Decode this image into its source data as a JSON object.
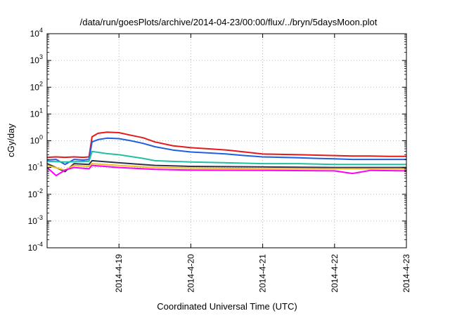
{
  "chart_data": {
    "type": "line",
    "title": "/data/run/goesPlots/archive/2014-04-23/00:00/flux/../bryn/5daysMoon.plot",
    "xlabel": "Coordinated Universal Time (UTC)",
    "ylabel": "cGy/day",
    "x_unit": "days (2014-04-18 00:00 to 2014-04-23 00:00 UTC)",
    "xlim": [
      "2014-04-18 00:00",
      "2014-04-23 00:00"
    ],
    "x_ticks": [
      "2014-4-19",
      "2014-4-20",
      "2014-4-21",
      "2014-4-22",
      "2014-4-23"
    ],
    "y_scale": "log",
    "ylim": [
      0.0001,
      10000
    ],
    "y_ticks": [
      {
        "base": "10",
        "exp": "-4"
      },
      {
        "base": "10",
        "exp": "-3"
      },
      {
        "base": "10",
        "exp": "-2"
      },
      {
        "base": "10",
        "exp": "-1"
      },
      {
        "base": "10",
        "exp": "0"
      },
      {
        "base": "10",
        "exp": "1"
      },
      {
        "base": "10",
        "exp": "2"
      },
      {
        "base": "10",
        "exp": "3"
      },
      {
        "base": "10",
        "exp": "4"
      }
    ],
    "grid": true,
    "legend": "none",
    "series": [
      {
        "color": "#e31a1c",
        "x": [
          "2014-04-18 00:00",
          "2014-04-18 03:00",
          "2014-04-18 06:00",
          "2014-04-18 09:00",
          "2014-04-18 12:00",
          "2014-04-18 14:00",
          "2014-04-18 15:00",
          "2014-04-18 17:00",
          "2014-04-18 20:00",
          "2014-04-19 00:00",
          "2014-04-19 04:00",
          "2014-04-19 08:00",
          "2014-04-19 12:00",
          "2014-04-19 18:00",
          "2014-04-20 00:00",
          "2014-04-20 06:00",
          "2014-04-20 12:00",
          "2014-04-20 18:00",
          "2014-04-21 00:00",
          "2014-04-21 06:00",
          "2014-04-21 12:00",
          "2014-04-21 18:00",
          "2014-04-22 00:00",
          "2014-04-22 06:00",
          "2014-04-22 12:00",
          "2014-04-22 18:00",
          "2014-04-23 00:00"
        ],
        "y": [
          0.24,
          0.25,
          0.24,
          0.25,
          0.24,
          0.25,
          1.4,
          1.9,
          2.1,
          2.0,
          1.6,
          1.3,
          0.9,
          0.65,
          0.55,
          0.5,
          0.45,
          0.38,
          0.32,
          0.31,
          0.3,
          0.29,
          0.28,
          0.27,
          0.27,
          0.26,
          0.26
        ]
      },
      {
        "color": "#1f5fe0",
        "x": [
          "2014-04-18 00:00",
          "2014-04-18 03:00",
          "2014-04-18 06:00",
          "2014-04-18 09:00",
          "2014-04-18 12:00",
          "2014-04-18 14:00",
          "2014-04-18 15:00",
          "2014-04-18 17:00",
          "2014-04-18 20:00",
          "2014-04-19 00:00",
          "2014-04-19 04:00",
          "2014-04-19 08:00",
          "2014-04-19 12:00",
          "2014-04-19 18:00",
          "2014-04-20 00:00",
          "2014-04-20 06:00",
          "2014-04-20 12:00",
          "2014-04-20 18:00",
          "2014-04-21 00:00",
          "2014-04-21 06:00",
          "2014-04-21 12:00",
          "2014-04-21 18:00",
          "2014-04-22 00:00",
          "2014-04-22 06:00",
          "2014-04-22 12:00",
          "2014-04-22 18:00",
          "2014-04-23 00:00"
        ],
        "y": [
          0.19,
          0.2,
          0.13,
          0.2,
          0.19,
          0.2,
          0.9,
          1.1,
          1.25,
          1.2,
          1.0,
          0.8,
          0.6,
          0.45,
          0.38,
          0.35,
          0.32,
          0.28,
          0.25,
          0.24,
          0.23,
          0.22,
          0.21,
          0.2,
          0.2,
          0.2,
          0.2
        ]
      },
      {
        "color": "#20c0a0",
        "x": [
          "2014-04-18 00:00",
          "2014-04-18 06:00",
          "2014-04-18 14:00",
          "2014-04-18 15:00",
          "2014-04-18 20:00",
          "2014-04-19 00:00",
          "2014-04-19 08:00",
          "2014-04-19 12:00",
          "2014-04-20 00:00",
          "2014-04-20 12:00",
          "2014-04-21 00:00",
          "2014-04-21 12:00",
          "2014-04-22 00:00",
          "2014-04-22 12:00",
          "2014-04-23 00:00"
        ],
        "y": [
          0.17,
          0.16,
          0.17,
          0.4,
          0.33,
          0.3,
          0.22,
          0.18,
          0.16,
          0.15,
          0.14,
          0.14,
          0.13,
          0.13,
          0.13
        ]
      },
      {
        "color": "#303050",
        "x": [
          "2014-04-18 00:00",
          "2014-04-18 06:00",
          "2014-04-18 09:00",
          "2014-04-18 14:00",
          "2014-04-18 15:00",
          "2014-04-19 00:00",
          "2014-04-19 12:00",
          "2014-04-20 00:00",
          "2014-04-21 00:00",
          "2014-04-22 00:00",
          "2014-04-23 00:00"
        ],
        "y": [
          0.14,
          0.07,
          0.14,
          0.13,
          0.18,
          0.15,
          0.12,
          0.11,
          0.105,
          0.1,
          0.1
        ]
      },
      {
        "color": "#f0c020",
        "x": [
          "2014-04-18 00:00",
          "2014-04-18 06:00",
          "2014-04-18 09:00",
          "2014-04-18 14:00",
          "2014-04-18 15:00",
          "2014-04-19 00:00",
          "2014-04-19 12:00",
          "2014-04-20 00:00",
          "2014-04-21 00:00",
          "2014-04-22 00:00",
          "2014-04-23 00:00"
        ],
        "y": [
          0.12,
          0.08,
          0.12,
          0.11,
          0.14,
          0.12,
          0.1,
          0.095,
          0.09,
          0.09,
          0.09
        ]
      },
      {
        "color": "#ff00ff",
        "x": [
          "2014-04-18 00:00",
          "2014-04-18 03:00",
          "2014-04-18 06:00",
          "2014-04-18 09:00",
          "2014-04-18 14:00",
          "2014-04-18 15:00",
          "2014-04-19 00:00",
          "2014-04-19 12:00",
          "2014-04-20 00:00",
          "2014-04-21 00:00",
          "2014-04-22 00:00",
          "2014-04-22 06:00",
          "2014-04-22 12:00",
          "2014-04-23 00:00"
        ],
        "y": [
          0.1,
          0.05,
          0.08,
          0.1,
          0.09,
          0.12,
          0.1,
          0.085,
          0.08,
          0.078,
          0.075,
          0.06,
          0.078,
          0.075
        ]
      }
    ]
  }
}
